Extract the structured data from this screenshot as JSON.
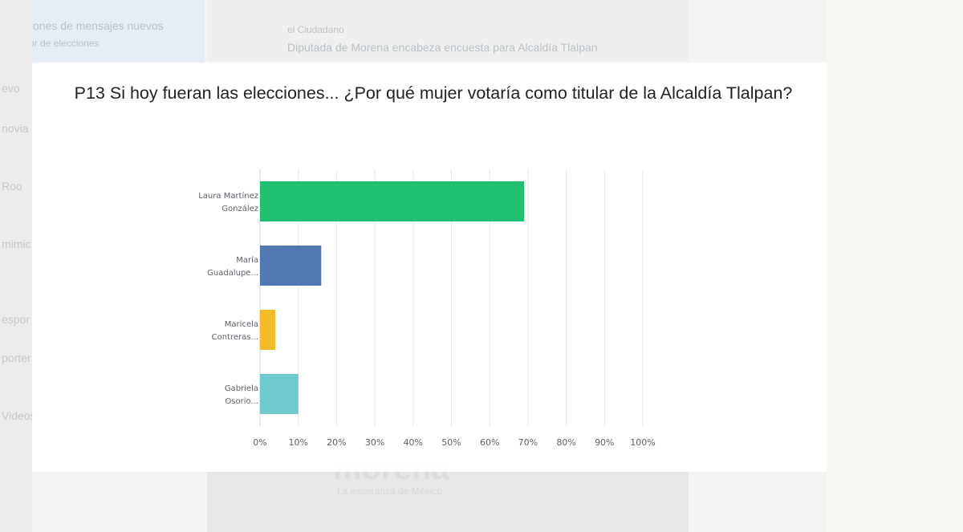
{
  "background": {
    "panel_lines": [
      "ificaciones de mensajes nuevos",
      "ervador de elecciones"
    ],
    "article_lines": [
      "el Ciudadano",
      "Diputada de Morena encabeza encuesta para Alcaldía Tlalpan"
    ],
    "side_items": [
      "evo",
      "novia",
      "Roo",
      "mimic",
      "espor",
      "porter",
      "Videos"
    ],
    "logo": "morena",
    "logo_sub": "La esperanza de México"
  },
  "chart_data": {
    "type": "bar",
    "orientation": "horizontal",
    "title": "P13 Si hoy fueran las elecciones... ¿Por qué mujer votaría como titular de la Alcaldía Tlalpan?",
    "categories": [
      [
        "Laura Martínez",
        "González"
      ],
      [
        "María",
        "Guadalupe..."
      ],
      [
        "Maricela",
        "Contreras..."
      ],
      [
        "Gabriela",
        "Osorio..."
      ]
    ],
    "values": [
      69,
      16,
      4,
      10
    ],
    "colors": [
      "#20c071",
      "#5079b3",
      "#f3bb2a",
      "#6fcbcb"
    ],
    "xlim": [
      0,
      100
    ],
    "xticks": [
      "0%",
      "10%",
      "20%",
      "30%",
      "40%",
      "50%",
      "60%",
      "70%",
      "80%",
      "90%",
      "100%"
    ],
    "grid": true,
    "xlabel": "",
    "ylabel": ""
  }
}
